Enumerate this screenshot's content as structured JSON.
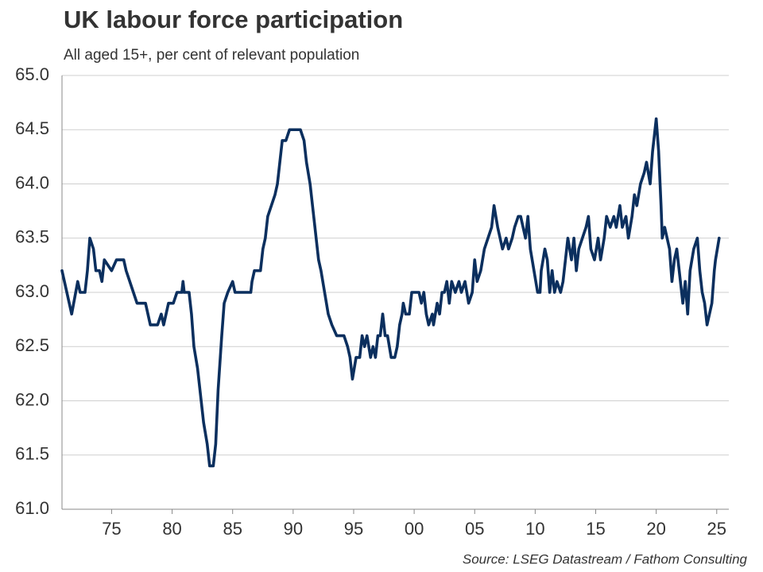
{
  "chart_data": {
    "type": "line",
    "title": "UK labour force participation",
    "subtitle": "All aged 15+, per cent of relevant population",
    "source": "Source: LSEG Datastream / Fathom Consulting",
    "x": [
      1970.9,
      1971.7,
      1972.2,
      1972.4,
      1972.8,
      1973.0,
      1973.2,
      1973.5,
      1973.7,
      1974.0,
      1974.2,
      1974.4,
      1975.0,
      1975.4,
      1976.0,
      1976.2,
      1976.5,
      1976.8,
      1977.1,
      1977.8,
      1978.0,
      1978.2,
      1978.8,
      1979.1,
      1979.3,
      1979.5,
      1979.7,
      1980.1,
      1980.4,
      1980.8,
      1980.9,
      1981.0,
      1981.4,
      1981.6,
      1981.8,
      1982.1,
      1982.3,
      1982.6,
      1982.9,
      1983.1,
      1983.4,
      1983.6,
      1983.8,
      1984.1,
      1984.3,
      1984.6,
      1985.0,
      1985.2,
      1986.5,
      1986.6,
      1986.8,
      1987.3,
      1987.5,
      1987.7,
      1987.9,
      1988.2,
      1988.5,
      1988.7,
      1988.9,
      1989.1,
      1989.4,
      1989.7,
      1990.6,
      1990.9,
      1991.1,
      1991.4,
      1991.7,
      1992.1,
      1992.3,
      1992.6,
      1992.9,
      1993.2,
      1993.6,
      1994.2,
      1994.5,
      1994.7,
      1994.9,
      1995.2,
      1995.5,
      1995.7,
      1995.9,
      1996.1,
      1996.4,
      1996.6,
      1996.8,
      1997.0,
      1997.2,
      1997.4,
      1997.6,
      1997.8,
      1998.1,
      1998.4,
      1998.6,
      1998.8,
      1999.0,
      1999.1,
      1999.3,
      1999.6,
      1999.8,
      2000.4,
      2000.6,
      2000.8,
      2001.0,
      2001.2,
      2001.5,
      2001.6,
      2001.9,
      2002.1,
      2002.3,
      2002.5,
      2002.7,
      2002.9,
      2003.1,
      2003.4,
      2003.7,
      2003.9,
      2004.2,
      2004.5,
      2004.8,
      2005.0,
      2005.2,
      2005.5,
      2005.8,
      2006.1,
      2006.4,
      2006.6,
      2006.9,
      2007.1,
      2007.3,
      2007.6,
      2007.8,
      2008.1,
      2008.3,
      2008.6,
      2008.8,
      2009.0,
      2009.2,
      2009.4,
      2009.6,
      2009.9,
      2010.2,
      2010.4,
      2010.5,
      2010.8,
      2011.0,
      2011.2,
      2011.4,
      2011.6,
      2011.8,
      2012.1,
      2012.3,
      2012.5,
      2012.7,
      2013.0,
      2013.2,
      2013.4,
      2013.6,
      2013.9,
      2014.2,
      2014.4,
      2014.6,
      2014.9,
      2015.2,
      2015.4,
      2015.7,
      2015.9,
      2016.2,
      2016.5,
      2016.7,
      2017.0,
      2017.2,
      2017.5,
      2017.7,
      2018.0,
      2018.2,
      2018.4,
      2018.7,
      2019.0,
      2019.2,
      2019.5,
      2019.7,
      2020.0,
      2020.2,
      2020.4,
      2020.5,
      2020.7,
      2020.9,
      2021.1,
      2021.3,
      2021.5,
      2021.7,
      2021.9,
      2022.2,
      2022.4,
      2022.6,
      2022.8,
      2023.1,
      2023.4,
      2023.6,
      2023.8,
      2024.0,
      2024.2,
      2024.4,
      2024.6,
      2024.8,
      2024.9,
      2025.2
    ],
    "series": [
      {
        "color": "#0b2f5e",
        "values": [
          63.2,
          62.8,
          63.1,
          63.0,
          63.0,
          63.2,
          63.5,
          63.4,
          63.2,
          63.2,
          63.1,
          63.3,
          63.2,
          63.3,
          63.3,
          63.2,
          63.1,
          63.0,
          62.9,
          62.9,
          62.8,
          62.7,
          62.7,
          62.8,
          62.7,
          62.8,
          62.9,
          62.9,
          63.0,
          63.0,
          63.1,
          63.0,
          63.0,
          62.8,
          62.5,
          62.3,
          62.1,
          61.8,
          61.6,
          61.4,
          61.4,
          61.6,
          62.1,
          62.6,
          62.9,
          63.0,
          63.1,
          63.0,
          63.0,
          63.1,
          63.2,
          63.2,
          63.4,
          63.5,
          63.7,
          63.8,
          63.9,
          64.0,
          64.2,
          64.4,
          64.4,
          64.5,
          64.5,
          64.4,
          64.2,
          64.0,
          63.7,
          63.3,
          63.2,
          63.0,
          62.8,
          62.7,
          62.6,
          62.6,
          62.5,
          62.4,
          62.2,
          62.4,
          62.4,
          62.6,
          62.5,
          62.6,
          62.4,
          62.5,
          62.4,
          62.6,
          62.6,
          62.8,
          62.6,
          62.6,
          62.4,
          62.4,
          62.5,
          62.7,
          62.8,
          62.9,
          62.8,
          62.8,
          63.0,
          63.0,
          62.9,
          63.0,
          62.8,
          62.7,
          62.8,
          62.7,
          62.9,
          62.8,
          63.0,
          63.0,
          63.1,
          62.9,
          63.1,
          63.0,
          63.1,
          63.0,
          63.1,
          62.9,
          63.0,
          63.3,
          63.1,
          63.2,
          63.4,
          63.5,
          63.6,
          63.8,
          63.6,
          63.5,
          63.4,
          63.5,
          63.4,
          63.5,
          63.6,
          63.7,
          63.7,
          63.6,
          63.5,
          63.7,
          63.4,
          63.2,
          63.0,
          63.0,
          63.2,
          63.4,
          63.3,
          63.0,
          63.2,
          63.0,
          63.1,
          63.0,
          63.1,
          63.3,
          63.5,
          63.3,
          63.5,
          63.2,
          63.4,
          63.5,
          63.6,
          63.7,
          63.4,
          63.3,
          63.5,
          63.3,
          63.5,
          63.7,
          63.6,
          63.7,
          63.6,
          63.8,
          63.6,
          63.7,
          63.5,
          63.7,
          63.9,
          63.8,
          64.0,
          64.1,
          64.2,
          64.0,
          64.3,
          64.6,
          64.3,
          63.8,
          63.5,
          63.6,
          63.5,
          63.4,
          63.1,
          63.3,
          63.4,
          63.2,
          62.9,
          63.1,
          62.8,
          63.2,
          63.4,
          63.5,
          63.2,
          63.0,
          62.9,
          62.7,
          62.8,
          62.9,
          63.2,
          63.3,
          63.5
        ]
      }
    ],
    "xlim": [
      1970.9,
      2026
    ],
    "xticks": [
      {
        "value": 1975,
        "label": "75"
      },
      {
        "value": 1980,
        "label": "80"
      },
      {
        "value": 1985,
        "label": "85"
      },
      {
        "value": 1990,
        "label": "90"
      },
      {
        "value": 1995,
        "label": "95"
      },
      {
        "value": 2000,
        "label": "00"
      },
      {
        "value": 2005,
        "label": "05"
      },
      {
        "value": 2010,
        "label": "10"
      },
      {
        "value": 2015,
        "label": "15"
      },
      {
        "value": 2020,
        "label": "20"
      },
      {
        "value": 2025,
        "label": "25"
      }
    ],
    "ylim": [
      61,
      65
    ],
    "yticks": [
      {
        "value": 61,
        "label": "61.0"
      },
      61.5,
      {
        "value": 62,
        "label": "62.0"
      },
      62.5,
      {
        "value": 63,
        "label": "63.0"
      },
      63.5,
      {
        "value": 64,
        "label": "64.0"
      },
      64.5,
      {
        "value": 65,
        "label": "65.0"
      }
    ],
    "grid": true
  }
}
